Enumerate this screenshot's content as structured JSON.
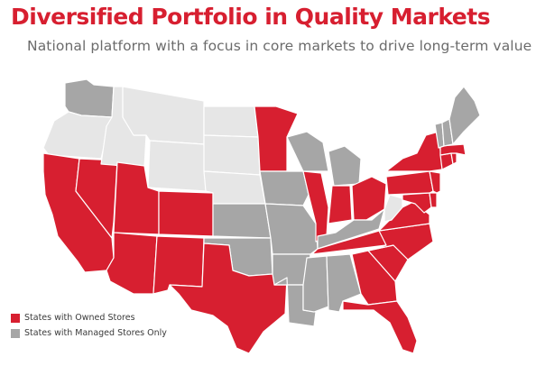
{
  "title": "Diversified Portfolio in Quality Markets",
  "subtitle": "National platform with a focus in core markets to drive long-term value",
  "colors": {
    "owned": "#d71f30",
    "managed": "#a6a6a6",
    "none": "#e6e6e6",
    "border": "#ffffff"
  },
  "legend": [
    {
      "label": "States with Owned Stores",
      "category": "owned"
    },
    {
      "label": "States with Managed Stores Only",
      "category": "managed"
    }
  ],
  "map_data": {
    "owned_states": [
      "CA",
      "NV",
      "AZ",
      "UT",
      "CO",
      "NM",
      "TX",
      "MN",
      "IL",
      "IN",
      "OH",
      "TN",
      "GA",
      "FL",
      "SC",
      "NC",
      "VA",
      "MD",
      "DE",
      "NJ",
      "PA",
      "NY",
      "CT",
      "RI",
      "MA"
    ],
    "managed_only_states": [
      "WA",
      "OK",
      "KS",
      "IA",
      "MO",
      "AR",
      "LA",
      "MS",
      "AL",
      "WI",
      "MI",
      "KY",
      "NH",
      "VT",
      "ME"
    ],
    "no_store_states": [
      "OR",
      "ID",
      "MT",
      "WY",
      "ND",
      "SD",
      "NE",
      "WV"
    ]
  }
}
